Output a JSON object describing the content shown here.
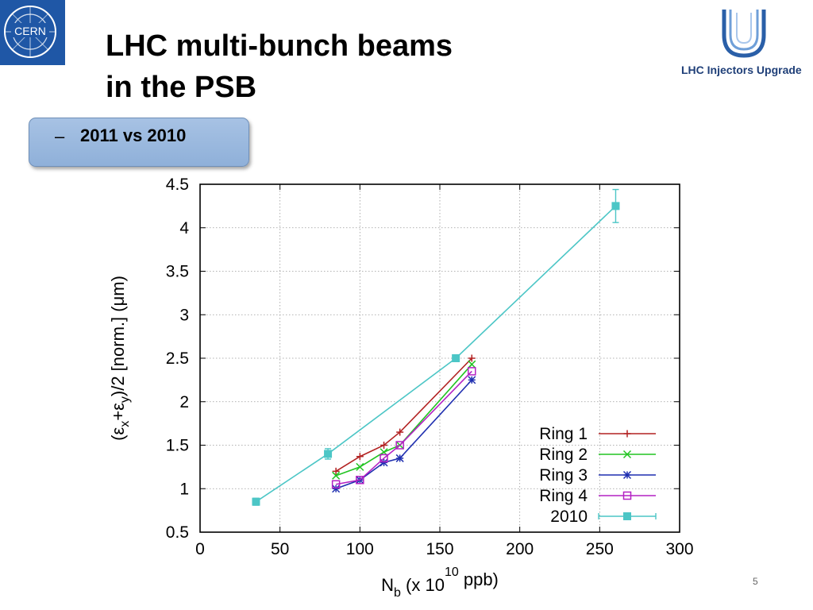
{
  "slide": {
    "title_line1": "LHC multi-bunch beams",
    "title_line2": "in the PSB",
    "subtitle_dash": "–",
    "subtitle": "2011 vs 2010",
    "page_number": "5"
  },
  "logos": {
    "cern_text": "CERN",
    "lhc_text": "LHC Injectors Upgrade",
    "cern_color": "#1f57a6",
    "lhc_color": "#1f3f78"
  },
  "chart_data": {
    "type": "line",
    "title": "",
    "xlabel_main": "N",
    "xlabel_sub": "b",
    "xlabel_mid": " (x 10",
    "xlabel_sup": "10",
    "xlabel_end": " ppb)",
    "ylabel_parts": [
      "(ε",
      "x",
      "+ε",
      "y",
      ")/2  [norm.] (μm)"
    ],
    "xlim": [
      0,
      300
    ],
    "ylim": [
      0.5,
      4.5
    ],
    "xticks": [
      0,
      50,
      100,
      150,
      200,
      250,
      300
    ],
    "xtick_labels": [
      "0",
      "50",
      "100",
      "150",
      "200",
      "250",
      "300"
    ],
    "yticks": [
      0.5,
      1,
      1.5,
      2,
      2.5,
      3,
      3.5,
      4,
      4.5
    ],
    "ytick_labels": [
      "0.5",
      "1",
      "1.5",
      "2",
      "2.5",
      "3",
      "3.5",
      "4",
      "4.5"
    ],
    "grid": true,
    "legend_position": "bottom-right",
    "series": [
      {
        "name": "Ring 1",
        "color": "#b22222",
        "marker": "plus",
        "x": [
          85,
          100,
          115,
          125,
          170
        ],
        "y": [
          1.2,
          1.37,
          1.5,
          1.65,
          2.5
        ]
      },
      {
        "name": "Ring 2",
        "color": "#22c422",
        "marker": "cross",
        "x": [
          85,
          100,
          115,
          125,
          170
        ],
        "y": [
          1.15,
          1.25,
          1.42,
          1.5,
          2.43
        ]
      },
      {
        "name": "Ring 3",
        "color": "#1f2fb0",
        "marker": "star",
        "x": [
          85,
          100,
          115,
          125,
          170
        ],
        "y": [
          1.0,
          1.1,
          1.3,
          1.35,
          2.25
        ]
      },
      {
        "name": "Ring 4",
        "color": "#b422c4",
        "marker": "square",
        "x": [
          85,
          100,
          115,
          125,
          170
        ],
        "y": [
          1.05,
          1.1,
          1.35,
          1.5,
          2.35
        ]
      },
      {
        "name": "2010",
        "color": "#4cc6c6",
        "marker": "filled-square",
        "x": [
          35,
          80,
          160,
          260
        ],
        "y": [
          0.85,
          1.4,
          2.5,
          4.25
        ],
        "yerr": [
          0.04,
          0.06,
          0.03,
          0.19
        ]
      }
    ]
  }
}
